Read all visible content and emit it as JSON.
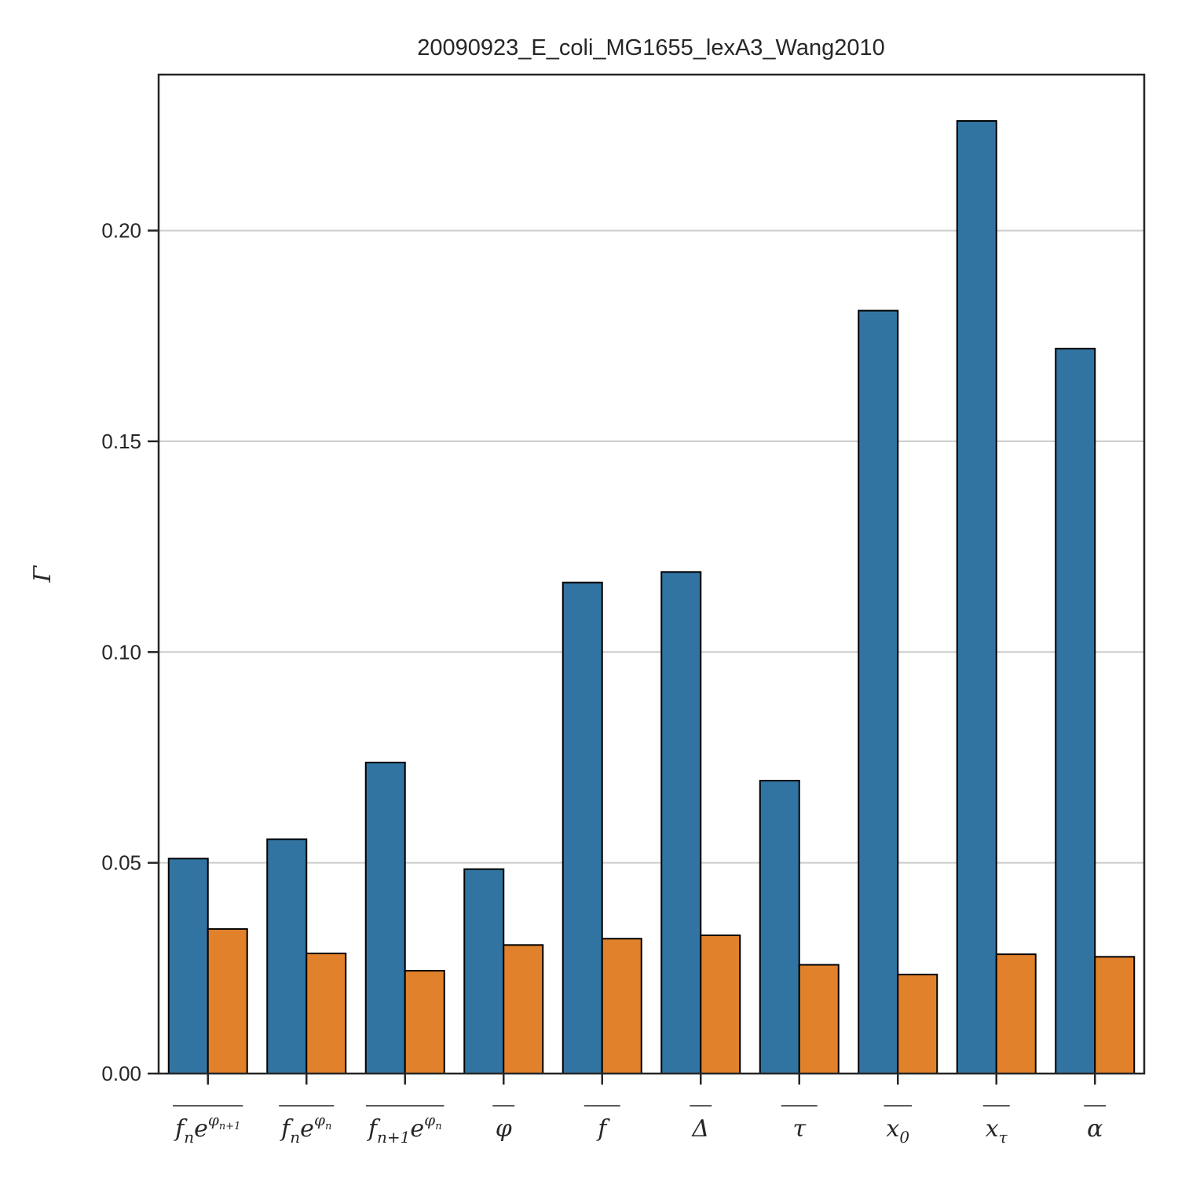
{
  "chart_data": {
    "type": "bar",
    "title": "20090923_E_coli_MG1655_lexA3_Wang2010",
    "xlabel": "",
    "ylabel": "Γ",
    "ylim": [
      0,
      0.237
    ],
    "yticks": [
      "0.00",
      "0.05",
      "0.10",
      "0.15",
      "0.20"
    ],
    "grid": "y",
    "legend": "none",
    "categories": [
      "f_n e^{φ_{n+1}}",
      "f_n e^{φ_n}",
      "f_{n+1} e^{φ_n}",
      "φ",
      "f",
      "Δ",
      "τ",
      "x_0",
      "x_τ",
      "α"
    ],
    "series": [
      {
        "color": "#3274a1",
        "values": [
          0.051,
          0.0556,
          0.0738,
          0.0485,
          0.1165,
          0.119,
          0.0695,
          0.181,
          0.226,
          0.172
        ]
      },
      {
        "color": "#e1812c",
        "values": [
          0.0343,
          0.0285,
          0.0244,
          0.0305,
          0.032,
          0.0328,
          0.0258,
          0.0235,
          0.0283,
          0.0277
        ]
      }
    ]
  }
}
